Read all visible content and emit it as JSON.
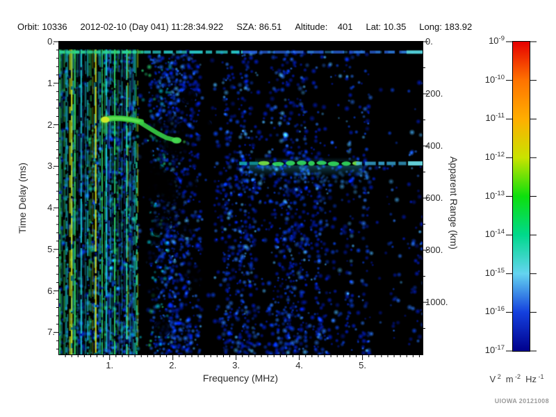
{
  "header": {
    "items": [
      "Orbit: 10336",
      "2012-02-10 (Day 041) 11:28:34.922",
      "SZA: 86.51",
      "Altitude:    401",
      "Lat: 10.35",
      "Long: 183.92"
    ]
  },
  "credit": "UIOWA 20121008",
  "chart_data": {
    "type": "heatmap",
    "description": "Radar sounder ionogram: received spectral density versus frequency and time delay",
    "x_axis": {
      "label": "Frequency (MHz)",
      "min": 0.2,
      "max": 5.95,
      "major_ticks": [
        1,
        2,
        3,
        4,
        5
      ],
      "tick_labels": [
        "1.",
        "2.",
        "3.",
        "4.",
        "5."
      ],
      "minor_step": 0.1
    },
    "y_axis": {
      "label": "Time Delay (ms)",
      "min": 0,
      "max": 7.53,
      "major_ticks": [
        0,
        1,
        2,
        3,
        4,
        5,
        6,
        7
      ],
      "tick_labels": [
        "0.",
        "1.",
        "2.",
        "3.",
        "4.",
        "5.",
        "6.",
        "7."
      ],
      "minor_step": 0.2,
      "direction": "down"
    },
    "y2_axis": {
      "label": "Apparent Range (km)",
      "min": 0,
      "max": 1200,
      "major_ticks": [
        0,
        200,
        400,
        600,
        800,
        1000
      ],
      "tick_labels": [
        "0.",
        "200.",
        "400.",
        "600.",
        "800.",
        "1000."
      ],
      "minor_step": 100
    },
    "colorbar": {
      "base": "10",
      "exponents": [
        "-9",
        "-10",
        "-11",
        "-12",
        "-13",
        "-14",
        "-15",
        "-16",
        "-17"
      ],
      "unit_parts": [
        {
          "base": "V",
          "sup": "2"
        },
        {
          "base": "m",
          "sup": "-2"
        },
        {
          "base": "Hz",
          "sup": "-1"
        }
      ],
      "gradient": [
        "#e60000",
        "#ff7300",
        "#ffae00",
        "#c9e300",
        "#0ddf0d",
        "#00d98c",
        "#64d4f0",
        "#1440de",
        "#00008c"
      ]
    },
    "features": {
      "top_blank_band_ms": [
        0,
        0.18
      ],
      "direct_signal": {
        "time_ms": 0.25,
        "freq_range_mhz": [
          0.2,
          5.95
        ]
      },
      "ionospheric_echo": {
        "points_mhz_ms": [
          [
            0.9,
            1.88
          ],
          [
            1.05,
            1.84
          ],
          [
            1.2,
            1.85
          ],
          [
            1.35,
            1.88
          ],
          [
            1.5,
            1.93
          ],
          [
            1.62,
            2.06
          ],
          [
            1.75,
            2.18
          ],
          [
            1.9,
            2.3
          ],
          [
            2.06,
            2.36
          ]
        ],
        "peak_mhz_ms": [
          0.93,
          1.88
        ]
      },
      "surface_reflection": {
        "time_ms": 2.93,
        "segments": [
          {
            "mhz": [
              3.05,
              3.35
            ],
            "tone": "cyan"
          },
          {
            "mhz": [
              3.35,
              4.9
            ],
            "tone": "green"
          },
          {
            "mhz": [
              4.9,
              5.72
            ],
            "tone": "blue-cyan"
          },
          {
            "mhz": [
              5.72,
              5.95
            ],
            "tone": "bright-cyan"
          }
        ]
      },
      "interference_band_mhz": [
        0.2,
        1.45
      ],
      "interference_lines": [
        {
          "mhz": 0.21,
          "tone": "green"
        },
        {
          "mhz": 0.4,
          "tone": "yellow-green"
        },
        {
          "mhz": 0.45,
          "tone": "green"
        },
        {
          "mhz": 0.55,
          "tone": "cyan"
        },
        {
          "mhz": 0.78,
          "tone": "yellow"
        },
        {
          "mhz": 0.88,
          "tone": "green"
        },
        {
          "mhz": 0.95,
          "tone": "cyan"
        },
        {
          "mhz": 1.08,
          "tone": "green"
        },
        {
          "mhz": 1.27,
          "tone": "teal"
        }
      ],
      "cyan_dashed_line": {
        "mhz": 1.43,
        "time_range_ms": [
          2.9,
          7.53
        ]
      },
      "density_profile": [
        {
          "mhz": [
            0.2,
            1.45
          ],
          "d": 0.85
        },
        {
          "mhz": [
            1.45,
            1.62
          ],
          "d": 0.1
        },
        {
          "mhz": [
            1.62,
            2.44
          ],
          "d": 0.55
        },
        {
          "mhz": [
            2.44,
            2.66
          ],
          "d": 0.09
        },
        {
          "mhz": [
            2.66,
            4.35
          ],
          "d": 0.52
        },
        {
          "mhz": [
            4.35,
            4.72
          ],
          "d": 0.3
        },
        {
          "mhz": [
            4.72,
            5.15
          ],
          "d": 0.42
        },
        {
          "mhz": [
            5.15,
            5.95
          ],
          "d": 0.15
        }
      ]
    }
  }
}
